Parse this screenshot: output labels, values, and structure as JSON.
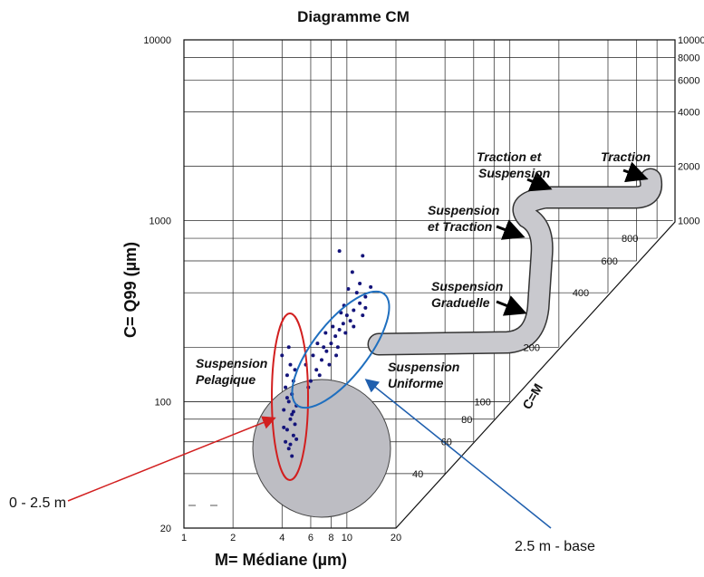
{
  "chart_data": {
    "type": "scatter",
    "title": "Diagramme CM",
    "x_label": "M= Médiane (µm)",
    "y_label": "C= Q99 (µm)",
    "diag_label": "C=M",
    "log_x": true,
    "log_y": true,
    "grid": true,
    "color": "#14147a",
    "xlim": [
      1,
      20
    ],
    "ylim": [
      20,
      10000
    ],
    "y2lim": [
      1000,
      10000
    ],
    "xticks": [
      1,
      2,
      4,
      6,
      8,
      10,
      20
    ],
    "yticks": [
      20,
      100,
      1000,
      10000
    ],
    "y2ticks": [
      1000,
      2000,
      4000,
      6000,
      8000,
      10000
    ],
    "diag_ticks": [
      40,
      60,
      80,
      100,
      200,
      400,
      600,
      800
    ],
    "x": [
      4.2,
      4.4,
      4.6,
      4.3,
      4.7,
      4.5,
      4.1,
      4.8,
      4.4,
      4.6,
      4.2,
      4.9,
      4.3,
      4.7,
      4.5,
      4.0,
      4.8,
      4.4,
      4.6,
      4.3,
      4.5,
      4.9,
      4.1,
      4.7,
      6.0,
      6.5,
      7.0,
      7.5,
      8.0,
      8.5,
      9.0,
      9.5,
      10,
      11,
      12,
      13,
      6.8,
      7.2,
      7.8,
      8.2,
      8.8,
      9.2,
      9.8,
      10.5,
      11.5,
      12.5,
      7.4,
      6.2,
      8.6,
      9.6,
      10.2,
      11,
      5.8,
      6.6,
      13,
      12,
      10.8,
      14,
      5.6,
      9.0,
      12.5
    ],
    "values": [
      60,
      55,
      50,
      70,
      65,
      80,
      90,
      75,
      100,
      110,
      120,
      95,
      140,
      130,
      160,
      180,
      150,
      200,
      85,
      105,
      58,
      62,
      72,
      88,
      130,
      150,
      170,
      190,
      210,
      230,
      250,
      270,
      300,
      320,
      350,
      380,
      140,
      200,
      160,
      260,
      200,
      310,
      240,
      280,
      400,
      300,
      240,
      180,
      180,
      340,
      420,
      260,
      120,
      210,
      330,
      450,
      520,
      430,
      160,
      680,
      640
    ],
    "annotations": {
      "traction": "Traction",
      "traction_suspension": [
        "Traction et",
        "Suspension"
      ],
      "suspension_traction": [
        "Suspension",
        "et Traction"
      ],
      "graduelle": [
        "Suspension",
        "Graduelle"
      ],
      "uniforme": [
        "Suspension",
        "Uniforme"
      ],
      "pelagique": [
        "Suspension",
        "Pelagique"
      ],
      "top_label": "0 - 2.5 m",
      "base_label": "2.5 m - base"
    }
  }
}
